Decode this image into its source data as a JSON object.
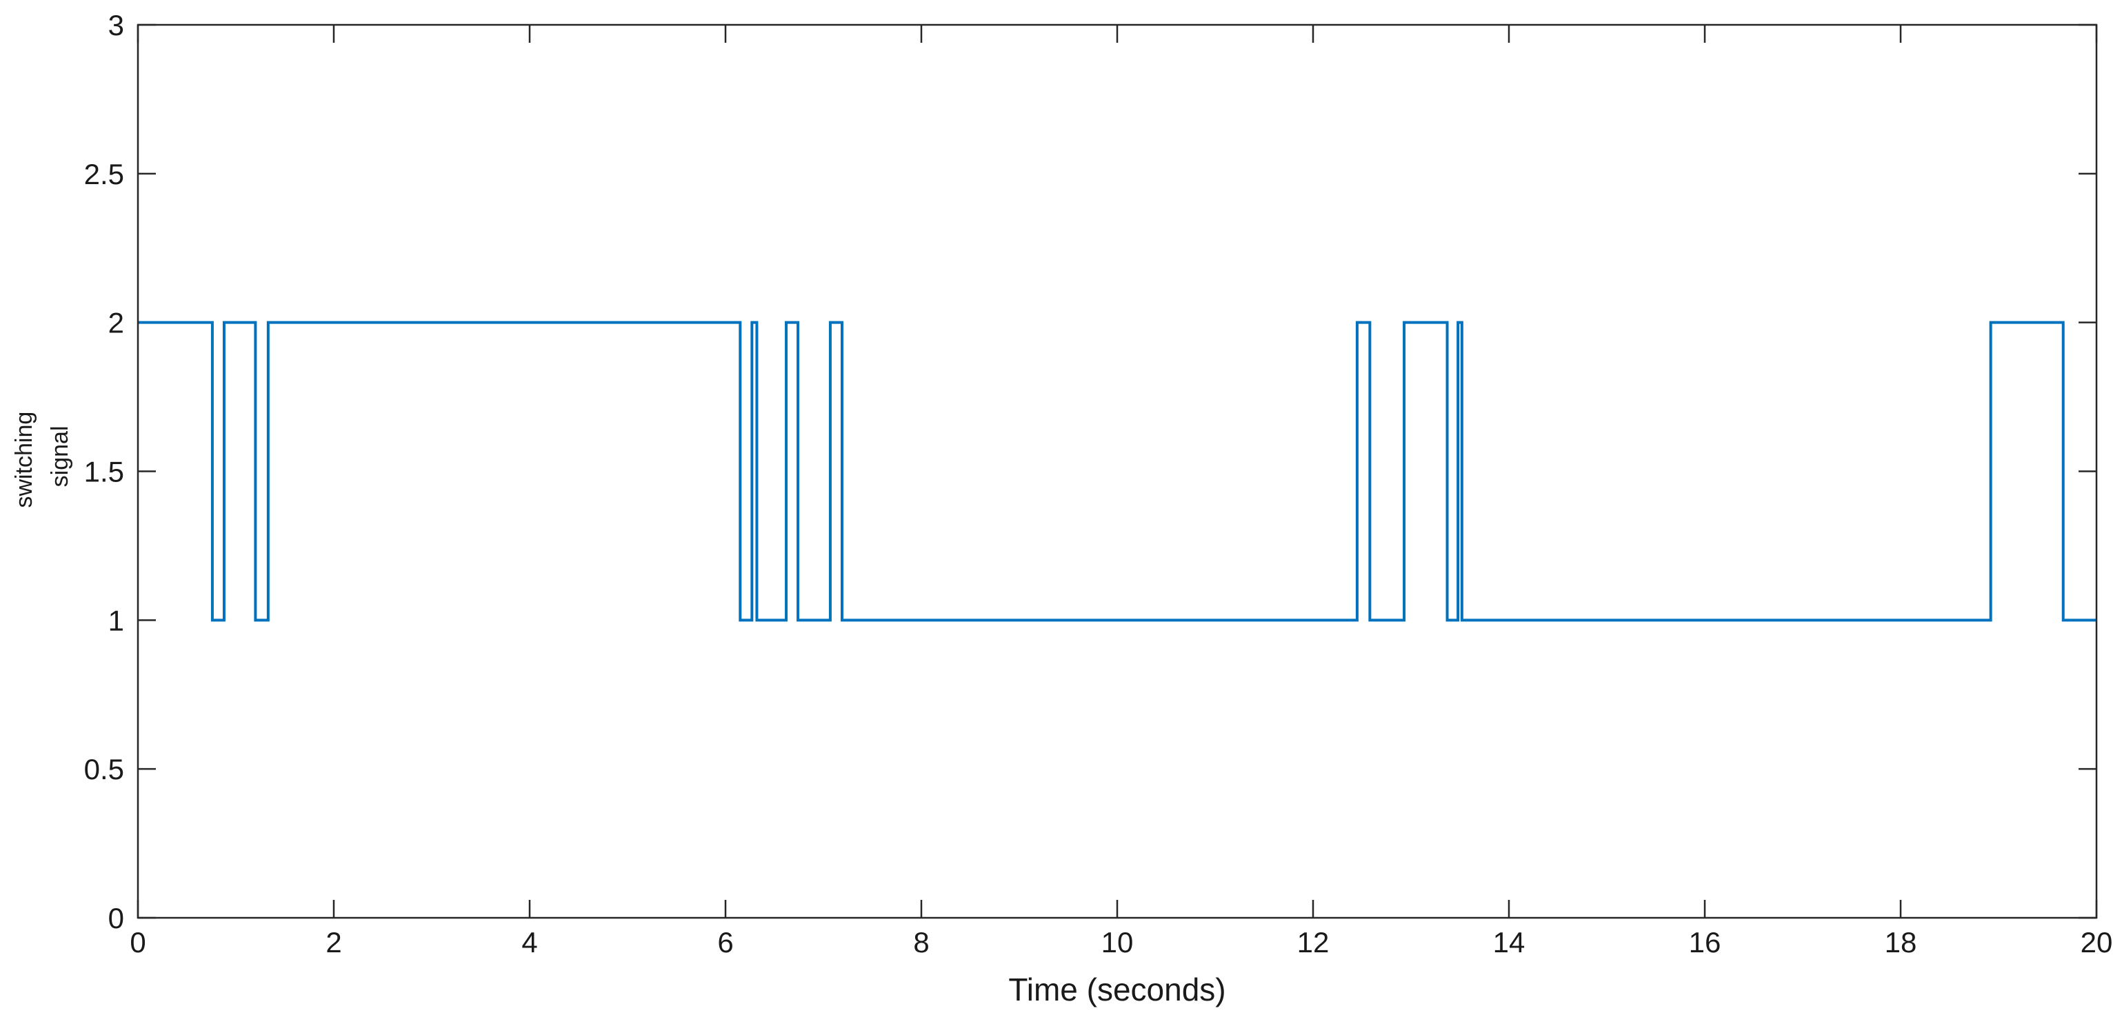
{
  "chart_data": {
    "type": "line",
    "title": "",
    "xlabel": "Time (seconds)",
    "ylabel_lines": [
      "switching",
      "signal"
    ],
    "xlim": [
      0,
      20
    ],
    "ylim": [
      0,
      3
    ],
    "xticks": [
      0,
      2,
      4,
      6,
      8,
      10,
      12,
      14,
      16,
      18,
      20
    ],
    "yticks": [
      0,
      0.5,
      1,
      1.5,
      2,
      2.5,
      3
    ],
    "xtick_labels": [
      "0",
      "2",
      "4",
      "6",
      "8",
      "10",
      "12",
      "14",
      "16",
      "18",
      "20"
    ],
    "ytick_labels": [
      "0",
      "0.5",
      "1",
      "1.5",
      "2",
      "2.5",
      "3"
    ],
    "grid": false,
    "line_style": "step",
    "series": [
      {
        "color": "#0072BD",
        "x": [
          0,
          0.76,
          0.88,
          1.2,
          1.33,
          6.15,
          6.27,
          6.32,
          6.62,
          6.74,
          7.07,
          7.19,
          12.45,
          12.58,
          12.93,
          13.37,
          13.48,
          13.52,
          18.92,
          19.66,
          20
        ],
        "y": [
          2,
          1,
          2,
          1,
          2,
          1,
          2,
          1,
          2,
          1,
          2,
          1,
          2,
          1,
          2,
          1,
          2,
          1,
          2,
          1,
          1
        ]
      }
    ]
  }
}
